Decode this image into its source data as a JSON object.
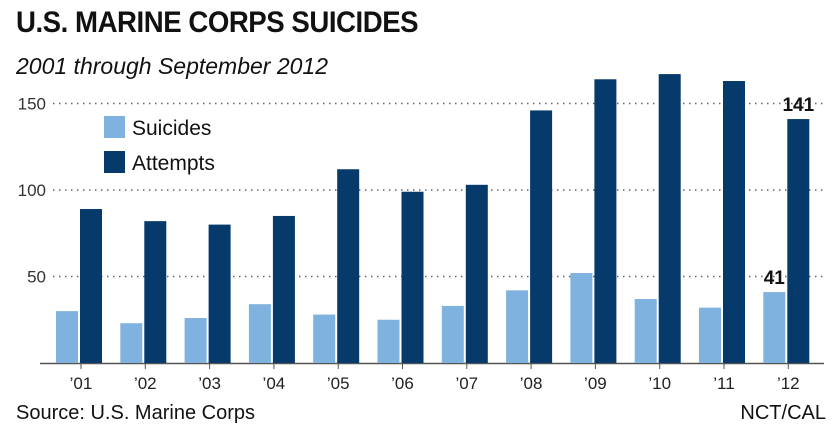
{
  "title": "U.S. MARINE CORPS SUICIDES",
  "subtitle": "2001 through September 2012",
  "source": "Source: U.S. Marine Corps",
  "credit": "NCT/CAL",
  "colors": {
    "suicides": "#7fb2de",
    "attempts": "#063a6b",
    "axis": "#555555"
  },
  "chart_data": {
    "type": "bar",
    "categories": [
      "’01",
      "’02",
      "’03",
      "’04",
      "’05",
      "’06",
      "’07",
      "’08",
      "’09",
      "’10",
      "’11",
      "’12"
    ],
    "series": [
      {
        "name": "Suicides",
        "values": [
          30,
          23,
          26,
          34,
          28,
          25,
          33,
          42,
          52,
          37,
          32,
          41
        ]
      },
      {
        "name": "Attempts",
        "values": [
          89,
          82,
          80,
          85,
          112,
          99,
          103,
          146,
          164,
          167,
          163,
          141
        ]
      }
    ],
    "data_labels": [
      {
        "series": "Suicides",
        "category": "’12",
        "text": "41"
      },
      {
        "series": "Attempts",
        "category": "’12",
        "text": "141"
      }
    ],
    "yticks": [
      50,
      100,
      150
    ],
    "ylim": [
      0,
      170
    ],
    "grid": "dotted-horizontal",
    "legend": "top-left",
    "xlabel": "",
    "ylabel": ""
  }
}
